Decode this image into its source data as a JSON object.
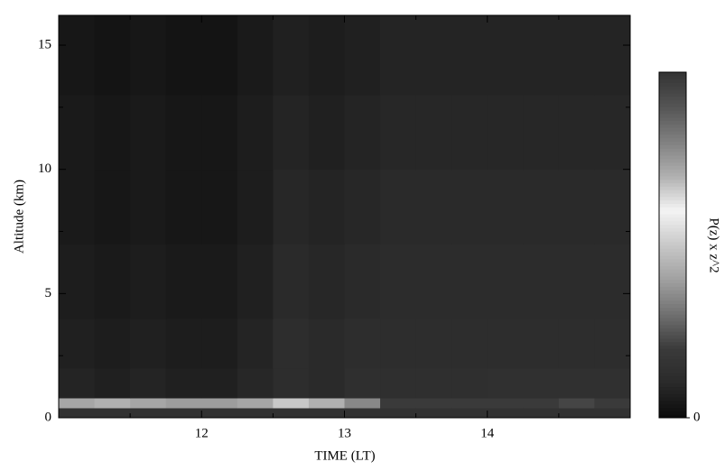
{
  "chart_data": {
    "type": "heatmap",
    "xlabel": "TIME (LT)",
    "ylabel": "Altitude (km)",
    "colorbar_label": "P(z) x z^2",
    "xlim": [
      11,
      15
    ],
    "ylim": [
      0,
      16.2
    ],
    "xticks": [
      12,
      13,
      14
    ],
    "xminor": [
      11.5,
      12.5,
      13.5,
      14.5
    ],
    "yticks": [
      0,
      5,
      10,
      15
    ],
    "yminor": [
      2.5,
      7.5,
      12.5
    ],
    "x_edges": [
      11,
      11.25,
      11.5,
      11.75,
      12,
      12.25,
      12.5,
      12.75,
      13,
      13.25,
      13.5,
      13.75,
      14,
      14.25,
      14.5,
      14.75,
      15
    ],
    "y_edges": [
      0,
      0.4,
      0.8,
      2,
      4,
      7,
      10,
      13,
      16.2
    ],
    "values": [
      [
        0.15,
        0.15,
        0.15,
        0.15,
        0.15,
        0.15,
        0.15,
        0.15,
        0.15,
        0.15,
        0.15,
        0.15,
        0.15,
        0.15,
        0.15,
        0.15
      ],
      [
        0.72,
        0.7,
        0.72,
        0.74,
        0.74,
        0.72,
        0.5,
        0.7,
        0.35,
        0.2,
        0.2,
        0.2,
        0.2,
        0.2,
        0.22,
        0.2
      ],
      [
        0.08,
        0.07,
        0.08,
        0.07,
        0.07,
        0.09,
        0.12,
        0.1,
        0.13,
        0.13,
        0.13,
        0.13,
        0.14,
        0.14,
        0.14,
        0.14
      ],
      [
        0.07,
        0.06,
        0.07,
        0.06,
        0.06,
        0.08,
        0.12,
        0.1,
        0.12,
        0.12,
        0.12,
        0.12,
        0.12,
        0.12,
        0.12,
        0.12
      ],
      [
        0.06,
        0.05,
        0.06,
        0.05,
        0.05,
        0.07,
        0.1,
        0.09,
        0.1,
        0.11,
        0.11,
        0.11,
        0.11,
        0.11,
        0.11,
        0.11
      ],
      [
        0.05,
        0.04,
        0.05,
        0.04,
        0.04,
        0.06,
        0.09,
        0.08,
        0.09,
        0.1,
        0.1,
        0.1,
        0.1,
        0.1,
        0.1,
        0.1
      ],
      [
        0.05,
        0.04,
        0.05,
        0.04,
        0.04,
        0.06,
        0.08,
        0.07,
        0.08,
        0.09,
        0.09,
        0.09,
        0.09,
        0.09,
        0.09,
        0.09
      ],
      [
        0.04,
        0.03,
        0.04,
        0.03,
        0.03,
        0.05,
        0.07,
        0.06,
        0.07,
        0.08,
        0.08,
        0.08,
        0.08,
        0.08,
        0.08,
        0.08
      ]
    ],
    "clim": [
      0,
      1
    ],
    "cticks": [
      0
    ],
    "colormap": [
      "#0a0a0a",
      "#2a2a2a",
      "#3a3a3a",
      "#707070",
      "#a0a0a0",
      "#c8c8c8",
      "#f4f4f4",
      "#b0b0b0",
      "#808080",
      "#555555",
      "#333333"
    ]
  }
}
